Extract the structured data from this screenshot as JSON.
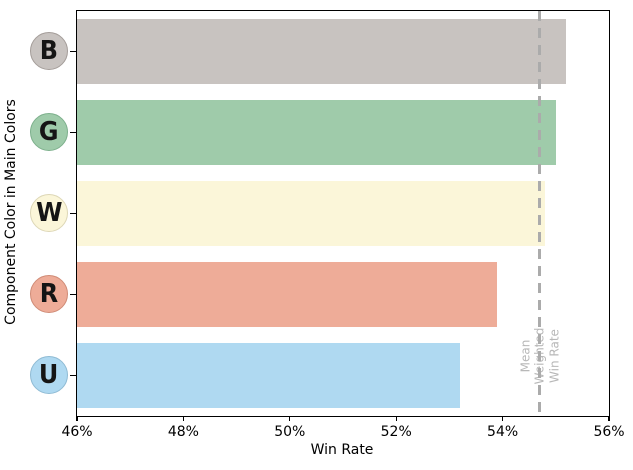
{
  "chart_data": {
    "type": "bar",
    "orientation": "horizontal",
    "title": "",
    "xlabel": "Win Rate",
    "ylabel": "Component Color in Main Colors",
    "categories": [
      "B",
      "G",
      "W",
      "R",
      "U"
    ],
    "values": [
      55.2,
      55.0,
      54.8,
      53.9,
      53.2
    ],
    "value_unit": "%",
    "xlim": [
      46,
      56
    ],
    "grid": false,
    "legend_position": "none",
    "bars": [
      {
        "label": "B",
        "value": 55.2,
        "color": "#c8c3c0",
        "badge_fill": "#c8c3c0",
        "badge_border": "#a49d99"
      },
      {
        "label": "G",
        "value": 55.0,
        "color": "#9fcbaa",
        "badge_fill": "#9fcbaa",
        "badge_border": "#7db08c"
      },
      {
        "label": "W",
        "value": 54.8,
        "color": "#fbf6d9",
        "badge_fill": "#fbf6d9",
        "badge_border": "#ddd7b6"
      },
      {
        "label": "R",
        "value": 53.9,
        "color": "#eeac98",
        "badge_fill": "#eeac98",
        "badge_border": "#d08b76"
      },
      {
        "label": "U",
        "value": 53.2,
        "color": "#afd9f1",
        "badge_fill": "#afd9f1",
        "badge_border": "#8fbbd4"
      }
    ],
    "xticks": [
      {
        "value": 46,
        "label": "46%"
      },
      {
        "value": 48,
        "label": "48%"
      },
      {
        "value": 50,
        "label": "50%"
      },
      {
        "value": 52,
        "label": "52%"
      },
      {
        "value": 54,
        "label": "54%"
      },
      {
        "value": 56,
        "label": "56%"
      }
    ],
    "reference_line": {
      "value": 54.7,
      "label": "Mean Weighted\nWin Rate",
      "line_color": "#ababab",
      "text_color": "#b8b8b8",
      "style": "dashed"
    }
  },
  "colors": {
    "background": "#ffffff",
    "spine": "#000000",
    "badge_letter": "#151515"
  }
}
